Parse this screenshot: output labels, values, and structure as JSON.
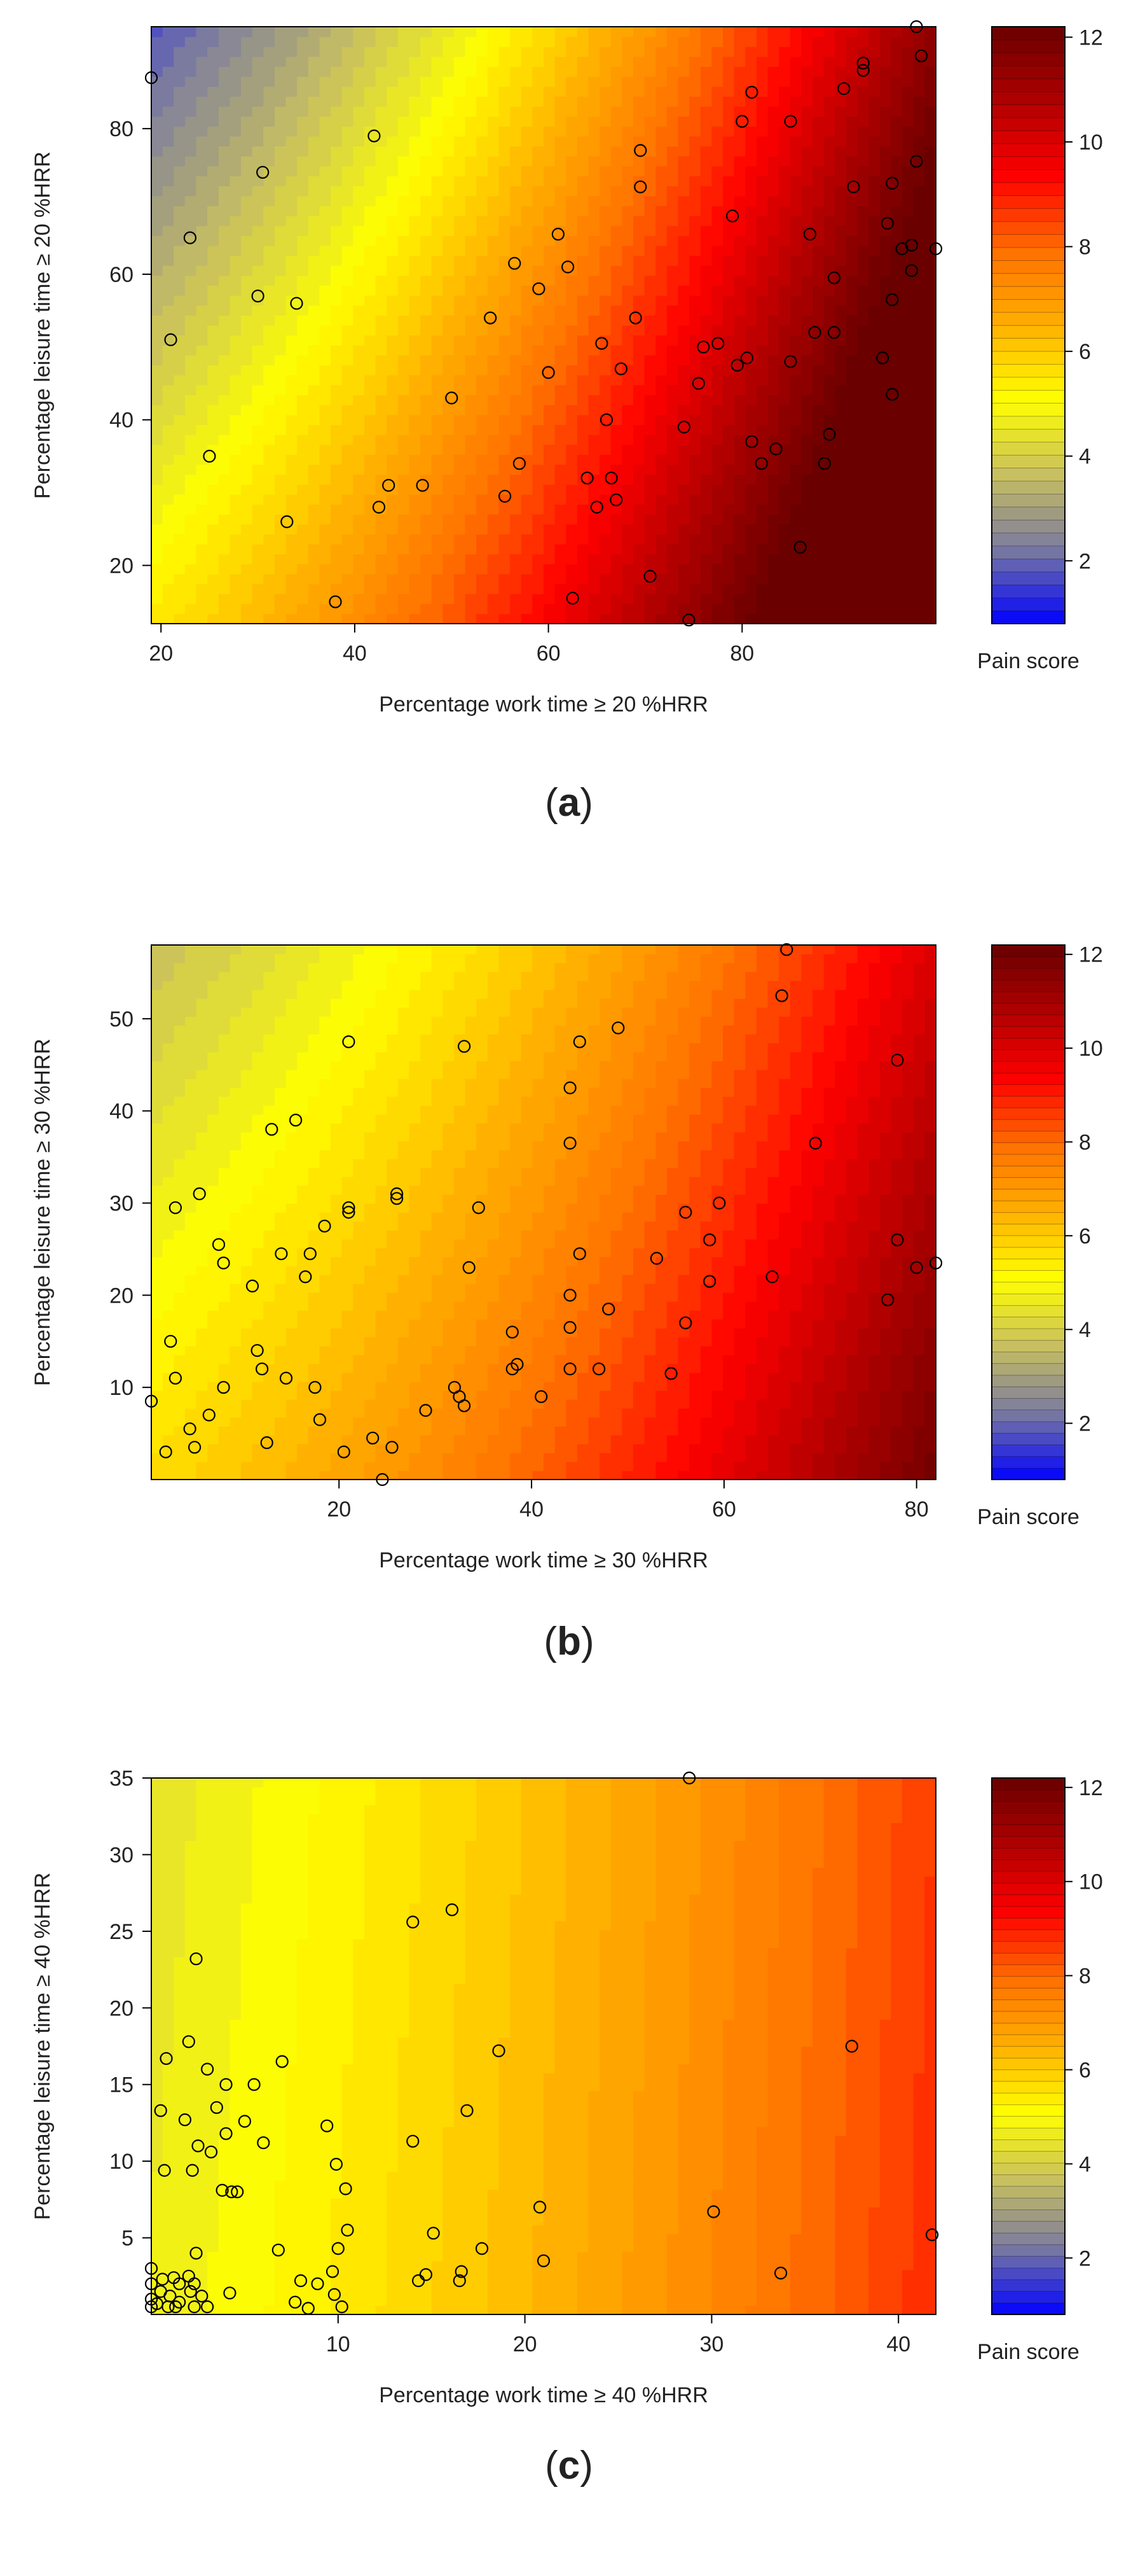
{
  "figure": {
    "panels": [
      {
        "label_open": "(",
        "label_letter": "a",
        "label_close": ")"
      },
      {
        "label_open": "(",
        "label_letter": "b",
        "label_close": ")"
      },
      {
        "label_open": "(",
        "label_letter": "c",
        "label_close": ")"
      }
    ]
  },
  "colors": {
    "scale": [
      "#0000ff",
      "#7a7aa0",
      "#c8c060",
      "#ffff00",
      "#ffb000",
      "#ff7000",
      "#ff0000",
      "#b00000",
      "#6a0000"
    ],
    "point_stroke": "#000000"
  },
  "chart_data": [
    {
      "type": "contour",
      "title": "",
      "xlabel": "Percentage work time ≥ 20 %HRR",
      "ylabel": "Percentage leisure time ≥ 20 %HRR",
      "xlim": [
        19,
        100
      ],
      "ylim": [
        12,
        94
      ],
      "xticks": [
        20,
        40,
        60,
        80
      ],
      "yticks": [
        20,
        40,
        60,
        80
      ],
      "colorbar_label": "Pain score",
      "colorbar_range": [
        0.8,
        12.2
      ],
      "colorbar_ticks": [
        2,
        4,
        6,
        8,
        10,
        12
      ],
      "surface": {
        "base": 4.2,
        "x_coef": 0.075,
        "y_coef": -0.045,
        "x_ref": 19,
        "y_ref": 40,
        "curve": 0.00055
      },
      "points": [
        [
          19,
          87
        ],
        [
          21,
          51
        ],
        [
          23,
          65
        ],
        [
          25,
          35
        ],
        [
          30,
          57
        ],
        [
          30.5,
          74
        ],
        [
          33,
          26
        ],
        [
          34,
          56
        ],
        [
          38,
          15
        ],
        [
          42,
          79
        ],
        [
          42.5,
          28
        ],
        [
          43.5,
          31
        ],
        [
          47,
          31
        ],
        [
          50,
          43
        ],
        [
          54,
          54
        ],
        [
          55.5,
          29.5
        ],
        [
          56.5,
          61.5
        ],
        [
          57,
          34
        ],
        [
          59,
          58
        ],
        [
          60,
          46.5
        ],
        [
          61,
          65.5
        ],
        [
          62,
          61
        ],
        [
          62.5,
          15.5
        ],
        [
          64,
          32
        ],
        [
          65,
          28
        ],
        [
          65.5,
          50.5
        ],
        [
          66,
          40
        ],
        [
          66.5,
          32
        ],
        [
          67,
          29
        ],
        [
          67.5,
          47
        ],
        [
          69,
          54
        ],
        [
          69.5,
          77
        ],
        [
          69.5,
          72
        ],
        [
          70.5,
          18.5
        ],
        [
          74,
          39
        ],
        [
          74.5,
          12.5
        ],
        [
          75.5,
          45
        ],
        [
          76,
          50
        ],
        [
          77.5,
          50.5
        ],
        [
          79,
          68
        ],
        [
          79.5,
          47.5
        ],
        [
          80,
          81
        ],
        [
          80.5,
          48.5
        ],
        [
          81,
          37
        ],
        [
          81,
          85
        ],
        [
          82,
          34
        ],
        [
          83.5,
          36
        ],
        [
          85,
          81
        ],
        [
          85,
          48
        ],
        [
          86,
          22.5
        ],
        [
          87,
          65.5
        ],
        [
          87.5,
          52
        ],
        [
          88.5,
          34
        ],
        [
          89,
          38
        ],
        [
          89.5,
          59.5
        ],
        [
          89.5,
          52
        ],
        [
          90.5,
          85.5
        ],
        [
          91.5,
          72
        ],
        [
          92.5,
          88
        ],
        [
          92.5,
          89
        ],
        [
          94.5,
          48.5
        ],
        [
          95,
          67
        ],
        [
          95.5,
          72.5
        ],
        [
          95.5,
          56.5
        ],
        [
          95.5,
          43.5
        ],
        [
          96.5,
          63.5
        ],
        [
          97.5,
          60.5
        ],
        [
          97.5,
          64
        ],
        [
          98,
          94
        ],
        [
          98,
          75.5
        ],
        [
          98.5,
          90
        ],
        [
          100,
          63.5
        ]
      ]
    },
    {
      "type": "contour",
      "title": "",
      "xlabel": "Percentage work time ≥ 30 %HRR",
      "ylabel": "Percentage leisure time ≥ 30 %HRR",
      "xlim": [
        0.5,
        82
      ],
      "ylim": [
        0,
        58
      ],
      "xticks": [
        20,
        40,
        60,
        80
      ],
      "yticks": [
        10,
        20,
        30,
        40,
        50
      ],
      "colorbar_label": "Pain score",
      "colorbar_range": [
        0.8,
        12.2
      ],
      "colorbar_ticks": [
        2,
        4,
        6,
        8,
        10,
        12
      ],
      "surface": {
        "base": 5.0,
        "x_coef": 0.045,
        "y_coef": -0.035,
        "x_ref": 0.5,
        "y_ref": 20,
        "curve": 0.0004
      },
      "points": [
        [
          0.5,
          8.5
        ],
        [
          2,
          3
        ],
        [
          2.5,
          15
        ],
        [
          3,
          29.5
        ],
        [
          3,
          11
        ],
        [
          4.5,
          5.5
        ],
        [
          5,
          3.5
        ],
        [
          5.5,
          31
        ],
        [
          6.5,
          7
        ],
        [
          7.5,
          25.5
        ],
        [
          8,
          23.5
        ],
        [
          8,
          10
        ],
        [
          11,
          21
        ],
        [
          11.5,
          14
        ],
        [
          12,
          12
        ],
        [
          12.5,
          4
        ],
        [
          13,
          38
        ],
        [
          14,
          24.5
        ],
        [
          14.5,
          11
        ],
        [
          15.5,
          39
        ],
        [
          16.5,
          22
        ],
        [
          17,
          24.5
        ],
        [
          17.5,
          10
        ],
        [
          18,
          6.5
        ],
        [
          18.5,
          27.5
        ],
        [
          20.5,
          3
        ],
        [
          21,
          29.5
        ],
        [
          21,
          29
        ],
        [
          21,
          47.5
        ],
        [
          23.5,
          4.5
        ],
        [
          24.5,
          0
        ],
        [
          25.5,
          3.5
        ],
        [
          26,
          30.5
        ],
        [
          26,
          31
        ],
        [
          29,
          7.5
        ],
        [
          32,
          10
        ],
        [
          32.5,
          9
        ],
        [
          33,
          47
        ],
        [
          33,
          8
        ],
        [
          33.5,
          23
        ],
        [
          34.5,
          29.5
        ],
        [
          38,
          16
        ],
        [
          38,
          12
        ],
        [
          38.5,
          12.5
        ],
        [
          41,
          9
        ],
        [
          44,
          20
        ],
        [
          44,
          16.5
        ],
        [
          44,
          12
        ],
        [
          44,
          36.5
        ],
        [
          44,
          42.5
        ],
        [
          45,
          24.5
        ],
        [
          45,
          47.5
        ],
        [
          47,
          12
        ],
        [
          48,
          18.5
        ],
        [
          49,
          49
        ],
        [
          53,
          24
        ],
        [
          54.5,
          11.5
        ],
        [
          56,
          29
        ],
        [
          56,
          17
        ],
        [
          58.5,
          21.5
        ],
        [
          58.5,
          26
        ],
        [
          59.5,
          30
        ],
        [
          65,
          22
        ],
        [
          66,
          52.5
        ],
        [
          66.5,
          57.5
        ],
        [
          69.5,
          36.5
        ],
        [
          77,
          19.5
        ],
        [
          78,
          26
        ],
        [
          78,
          45.5
        ],
        [
          80,
          23
        ],
        [
          82,
          23.5
        ]
      ]
    },
    {
      "type": "contour",
      "title": "",
      "xlabel": "Percentage work time ≥ 40 %HRR",
      "ylabel": "Percentage leisure time ≥ 40 %HRR",
      "xlim": [
        0,
        42
      ],
      "ylim": [
        0,
        35
      ],
      "xticks": [
        10,
        20,
        30,
        40
      ],
      "yticks": [
        5,
        10,
        15,
        20,
        25,
        30,
        35
      ],
      "colorbar_label": "Pain score",
      "colorbar_range": [
        0.8,
        12.2
      ],
      "colorbar_ticks": [
        2,
        4,
        6,
        8,
        10,
        12
      ],
      "surface": {
        "base": 4.6,
        "x_coef": 0.07,
        "y_coef": -0.006,
        "x_ref": 0,
        "y_ref": 10,
        "curve": 0.0007
      },
      "points": [
        [
          0,
          0.5
        ],
        [
          0,
          1
        ],
        [
          0,
          2
        ],
        [
          0,
          3
        ],
        [
          0.3,
          0.7
        ],
        [
          0.5,
          1.5
        ],
        [
          0.5,
          13.3
        ],
        [
          0.6,
          2.3
        ],
        [
          0.7,
          9.4
        ],
        [
          0.8,
          16.7
        ],
        [
          0.9,
          0.5
        ],
        [
          1,
          1.2
        ],
        [
          1.2,
          2.4
        ],
        [
          1.3,
          0.5
        ],
        [
          1.5,
          2
        ],
        [
          1.5,
          0.8
        ],
        [
          1.8,
          12.7
        ],
        [
          2,
          2.5
        ],
        [
          2,
          17.8
        ],
        [
          2.1,
          1.5
        ],
        [
          2.2,
          9.4
        ],
        [
          2.3,
          2
        ],
        [
          2.3,
          0.5
        ],
        [
          2.4,
          4
        ],
        [
          2.4,
          23.2
        ],
        [
          2.5,
          11
        ],
        [
          2.7,
          1.2
        ],
        [
          3,
          16
        ],
        [
          3,
          0.5
        ],
        [
          3.2,
          10.6
        ],
        [
          3.5,
          13.5
        ],
        [
          3.8,
          8.1
        ],
        [
          4,
          11.8
        ],
        [
          4,
          15
        ],
        [
          4.2,
          1.4
        ],
        [
          4.3,
          8
        ],
        [
          4.6,
          8
        ],
        [
          5,
          12.6
        ],
        [
          5.5,
          15
        ],
        [
          6,
          11.2
        ],
        [
          6.8,
          4.2
        ],
        [
          7,
          16.5
        ],
        [
          7.7,
          0.8
        ],
        [
          8,
          2.2
        ],
        [
          8.4,
          0.4
        ],
        [
          8.9,
          2
        ],
        [
          9.4,
          12.3
        ],
        [
          9.7,
          2.8
        ],
        [
          9.8,
          1.3
        ],
        [
          9.9,
          9.8
        ],
        [
          10,
          4.3
        ],
        [
          10.2,
          0.5
        ],
        [
          10.4,
          8.2
        ],
        [
          10.5,
          5.5
        ],
        [
          14,
          25.6
        ],
        [
          14,
          11.3
        ],
        [
          14.3,
          2.2
        ],
        [
          14.7,
          2.6
        ],
        [
          15.1,
          5.3
        ],
        [
          16.1,
          26.4
        ],
        [
          16.5,
          2.2
        ],
        [
          16.6,
          2.8
        ],
        [
          16.9,
          13.3
        ],
        [
          17.7,
          4.3
        ],
        [
          18.6,
          17.2
        ],
        [
          20.8,
          7
        ],
        [
          21,
          3.5
        ],
        [
          28.8,
          35
        ],
        [
          30.1,
          6.7
        ],
        [
          33.7,
          2.7
        ],
        [
          37.5,
          17.5
        ],
        [
          41.8,
          5.2
        ]
      ]
    }
  ]
}
